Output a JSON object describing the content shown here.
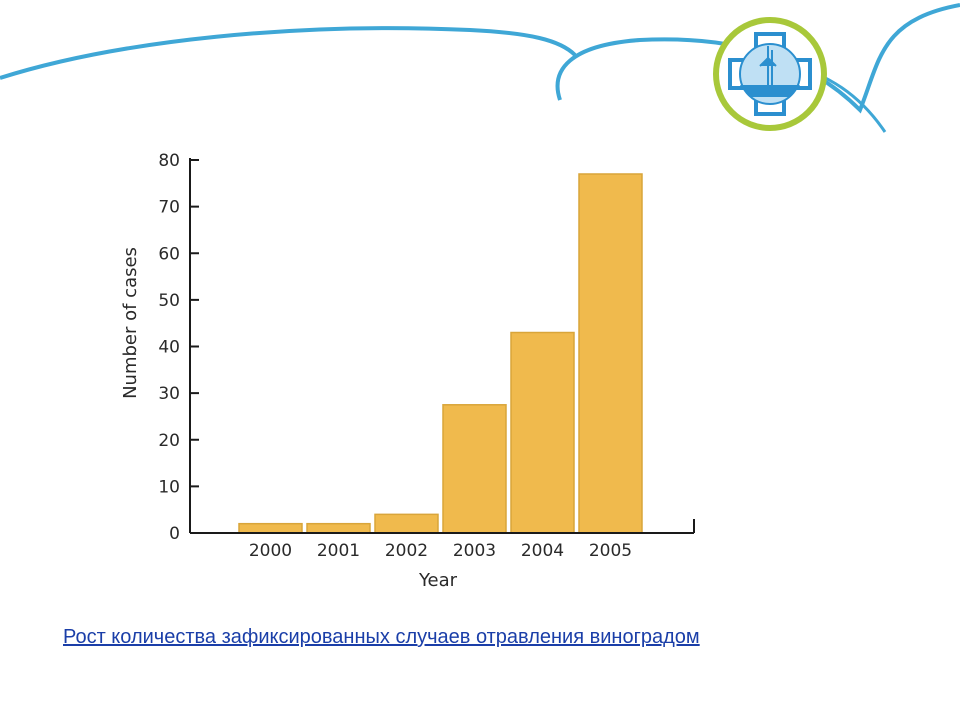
{
  "caption": "Рост количества зафиксированных случаев отравления виноградом",
  "colors": {
    "bar": "#f0ba4d",
    "bar_edge": "#d9a53a",
    "axis": "#1a1a1a",
    "wave": "#3fa7d6",
    "logo_ring": "#a8c83a",
    "logo_cross": "#2b8fcf",
    "caption": "#1a3ea8"
  },
  "logo": {
    "icon": "medical-cross-emblem-icon"
  },
  "chart_data": {
    "type": "bar",
    "categories": [
      "2000",
      "2001",
      "2002",
      "2003",
      "2004",
      "2005"
    ],
    "values": [
      2,
      2,
      4,
      27.5,
      43,
      77
    ],
    "xlabel": "Year",
    "ylabel": "Number of cases",
    "ylim": [
      0,
      80
    ],
    "yticks": [
      0,
      10,
      20,
      30,
      40,
      50,
      60,
      70,
      80
    ],
    "grid": false,
    "legend": "none"
  }
}
